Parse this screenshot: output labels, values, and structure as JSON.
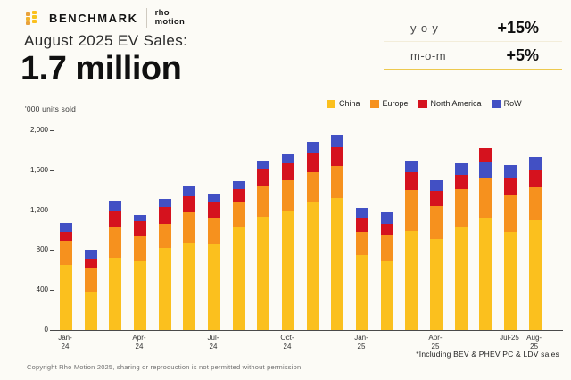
{
  "header": {
    "brand": {
      "benchmark": "BENCHMARK",
      "partner_line1": "rho",
      "partner_line2": "motion"
    },
    "title": "August 2025 EV Sales:",
    "headline": "1.7 million",
    "stats": [
      {
        "label": "y-o-y",
        "value": "+15%"
      },
      {
        "label": "m-o-m",
        "value": "+5%"
      }
    ],
    "accent_line_color": "#EDC94F"
  },
  "chart_data": {
    "type": "bar",
    "stacked": true,
    "title": "August 2025 EV Sales: 1.7 million",
    "xlabel": "",
    "ylabel": "'000 units sold",
    "ylim": [
      0,
      2000
    ],
    "y_ticks": [
      "2,000",
      "1,600",
      "1,200",
      "800",
      "400",
      "0"
    ],
    "grid": false,
    "legend_position": "top-right",
    "legend": [
      {
        "name": "China",
        "color": "#FBC01E"
      },
      {
        "name": "Europe",
        "color": "#F6911E"
      },
      {
        "name": "North America",
        "color": "#D5121E"
      },
      {
        "name": "RoW",
        "color": "#4250C4"
      }
    ],
    "categories": [
      "Jan-24",
      "Feb-24",
      "Mar-24",
      "Apr-24",
      "May-24",
      "Jun-24",
      "Jul-24",
      "Aug-24",
      "Sep-24",
      "Oct-24",
      "Nov-24",
      "Dec-24",
      "Jan-25",
      "Feb-25",
      "Mar-25",
      "Apr-25",
      "May-25",
      "Jun-25",
      "Jul-25",
      "Aug-25"
    ],
    "bars": [
      {
        "month": "Jan-24",
        "axis_label": "Jan-\n24",
        "segments": [
          {
            "series": "China",
            "value": 655
          },
          {
            "series": "Europe",
            "value": 235
          },
          {
            "series": "North America",
            "value": 90
          },
          {
            "series": "RoW",
            "value": 95
          }
        ]
      },
      {
        "month": "Feb-24",
        "axis_label": null,
        "segments": [
          {
            "series": "China",
            "value": 380
          },
          {
            "series": "Europe",
            "value": 240
          },
          {
            "series": "North America",
            "value": 95
          },
          {
            "series": "RoW",
            "value": 85
          }
        ]
      },
      {
        "month": "Mar-24",
        "axis_label": null,
        "segments": [
          {
            "series": "China",
            "value": 720
          },
          {
            "series": "Europe",
            "value": 320
          },
          {
            "series": "North America",
            "value": 160
          },
          {
            "series": "RoW",
            "value": 95
          }
        ]
      },
      {
        "month": "Apr-24",
        "axis_label": "Apr-\n24",
        "segments": [
          {
            "series": "China",
            "value": 690
          },
          {
            "series": "Europe",
            "value": 245
          },
          {
            "series": "North America",
            "value": 155
          },
          {
            "series": "RoW",
            "value": 60
          }
        ]
      },
      {
        "month": "May-24",
        "axis_label": null,
        "segments": [
          {
            "series": "China",
            "value": 820
          },
          {
            "series": "Europe",
            "value": 245
          },
          {
            "series": "North America",
            "value": 170
          },
          {
            "series": "RoW",
            "value": 75
          }
        ]
      },
      {
        "month": "Jun-24",
        "axis_label": null,
        "segments": [
          {
            "series": "China",
            "value": 875
          },
          {
            "series": "Europe",
            "value": 305
          },
          {
            "series": "North America",
            "value": 155
          },
          {
            "series": "RoW",
            "value": 105
          }
        ]
      },
      {
        "month": "Jul-24",
        "axis_label": "Jul-\n24",
        "segments": [
          {
            "series": "China",
            "value": 865
          },
          {
            "series": "Europe",
            "value": 260
          },
          {
            "series": "North America",
            "value": 160
          },
          {
            "series": "RoW",
            "value": 75
          }
        ]
      },
      {
        "month": "Aug-24",
        "axis_label": null,
        "segments": [
          {
            "series": "China",
            "value": 1035
          },
          {
            "series": "Europe",
            "value": 240
          },
          {
            "series": "North America",
            "value": 140
          },
          {
            "series": "RoW",
            "value": 80
          }
        ]
      },
      {
        "month": "Sep-24",
        "axis_label": null,
        "segments": [
          {
            "series": "China",
            "value": 1130
          },
          {
            "series": "Europe",
            "value": 315
          },
          {
            "series": "North America",
            "value": 165
          },
          {
            "series": "RoW",
            "value": 80
          }
        ]
      },
      {
        "month": "Oct-24",
        "axis_label": "Oct-\n24",
        "segments": [
          {
            "series": "China",
            "value": 1200
          },
          {
            "series": "Europe",
            "value": 300
          },
          {
            "series": "North America",
            "value": 170
          },
          {
            "series": "RoW",
            "value": 85
          }
        ]
      },
      {
        "month": "Nov-24",
        "axis_label": null,
        "segments": [
          {
            "series": "China",
            "value": 1285
          },
          {
            "series": "Europe",
            "value": 295
          },
          {
            "series": "North America",
            "value": 190
          },
          {
            "series": "RoW",
            "value": 115
          }
        ]
      },
      {
        "month": "Dec-24",
        "axis_label": null,
        "segments": [
          {
            "series": "China",
            "value": 1320
          },
          {
            "series": "Europe",
            "value": 325
          },
          {
            "series": "North America",
            "value": 190
          },
          {
            "series": "RoW",
            "value": 125
          }
        ]
      },
      {
        "month": "Jan-25",
        "axis_label": "Jan-\n25",
        "segments": [
          {
            "series": "China",
            "value": 750
          },
          {
            "series": "Europe",
            "value": 235
          },
          {
            "series": "North America",
            "value": 140
          },
          {
            "series": "RoW",
            "value": 95
          }
        ]
      },
      {
        "month": "Feb-25",
        "axis_label": null,
        "segments": [
          {
            "series": "China",
            "value": 685
          },
          {
            "series": "Europe",
            "value": 270
          },
          {
            "series": "North America",
            "value": 110
          },
          {
            "series": "RoW",
            "value": 110
          }
        ]
      },
      {
        "month": "Mar-25",
        "axis_label": null,
        "segments": [
          {
            "series": "China",
            "value": 990
          },
          {
            "series": "Europe",
            "value": 410
          },
          {
            "series": "North America",
            "value": 180
          },
          {
            "series": "RoW",
            "value": 105
          }
        ]
      },
      {
        "month": "Apr-25",
        "axis_label": "Apr-\n25",
        "segments": [
          {
            "series": "China",
            "value": 915
          },
          {
            "series": "Europe",
            "value": 330
          },
          {
            "series": "North America",
            "value": 145
          },
          {
            "series": "RoW",
            "value": 110
          }
        ]
      },
      {
        "month": "May-25",
        "axis_label": null,
        "segments": [
          {
            "series": "China",
            "value": 1040
          },
          {
            "series": "Europe",
            "value": 370
          },
          {
            "series": "North America",
            "value": 145
          },
          {
            "series": "RoW",
            "value": 115
          }
        ]
      },
      {
        "month": "Jun-25",
        "axis_label": null,
        "segments": [
          {
            "series": "China",
            "value": 1125
          },
          {
            "series": "Europe",
            "value": 400
          },
          {
            "series": "RoW",
            "value": 150
          },
          {
            "series": "North America",
            "value": 145
          }
        ]
      },
      {
        "month": "Jul-25",
        "axis_label": "Jul-25",
        "segments": [
          {
            "series": "China",
            "value": 980
          },
          {
            "series": "Europe",
            "value": 370
          },
          {
            "series": "North America",
            "value": 175
          },
          {
            "series": "RoW",
            "value": 130
          }
        ]
      },
      {
        "month": "Aug-25",
        "axis_label": "Aug-\n25",
        "segments": [
          {
            "series": "China",
            "value": 1100
          },
          {
            "series": "Europe",
            "value": 330
          },
          {
            "series": "North America",
            "value": 165
          },
          {
            "series": "RoW",
            "value": 140
          }
        ]
      }
    ],
    "footnote": "*Including BEV & PHEV PC & LDV sales"
  },
  "footer": {
    "copyright": "Copyright Rho Motion 2025, sharing or reproduction is not permitted without permission"
  }
}
